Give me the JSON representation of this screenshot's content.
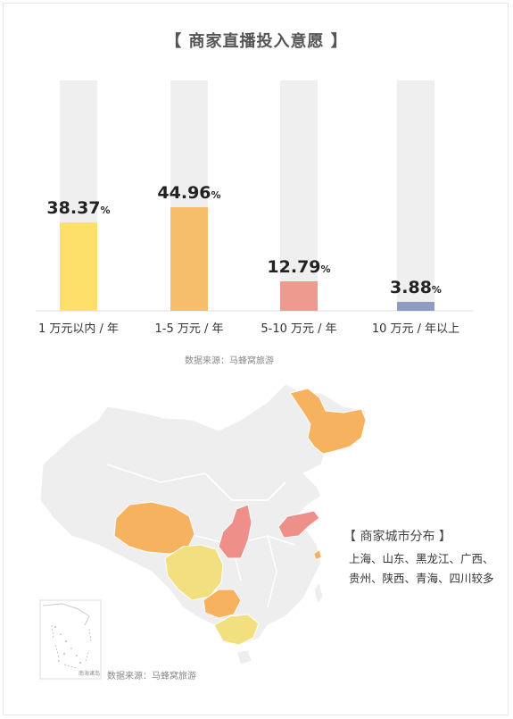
{
  "title": "【 商家直播投入意愿 】",
  "chart_data": {
    "type": "bar",
    "title": "【 商家直播投入意愿 】",
    "categories": [
      "1 万元以内 / 年",
      "1-5 万元 / 年",
      "5-10 万元 / 年",
      "10 万元 / 年以上"
    ],
    "values": [
      38.37,
      44.96,
      12.79,
      3.88
    ],
    "value_labels": [
      "38.37",
      "44.96",
      "12.79",
      "3.88"
    ],
    "unit": "%",
    "ylim": [
      0,
      100
    ],
    "colors": [
      "#fde06a",
      "#f6be6b",
      "#ef9a8f",
      "#8f9bc2"
    ],
    "track_color": "#efefef",
    "grid": false
  },
  "chart_source": "数据来源：马蜂窝旅游",
  "map": {
    "legend_title": "【 商家城市分布 】",
    "legend_line1": "上海、山东、黑龙江、广西、",
    "legend_line2": "贵州、陕西、青海、四川较多",
    "source": "数据来源：马蜂窝旅游",
    "inset_label": "南海诸岛",
    "colors": {
      "base": "#eeeeee",
      "orange": "#f6b25e",
      "pink": "#ef8f8a",
      "yellow": "#f2df7f",
      "border": "#ffffff"
    }
  }
}
